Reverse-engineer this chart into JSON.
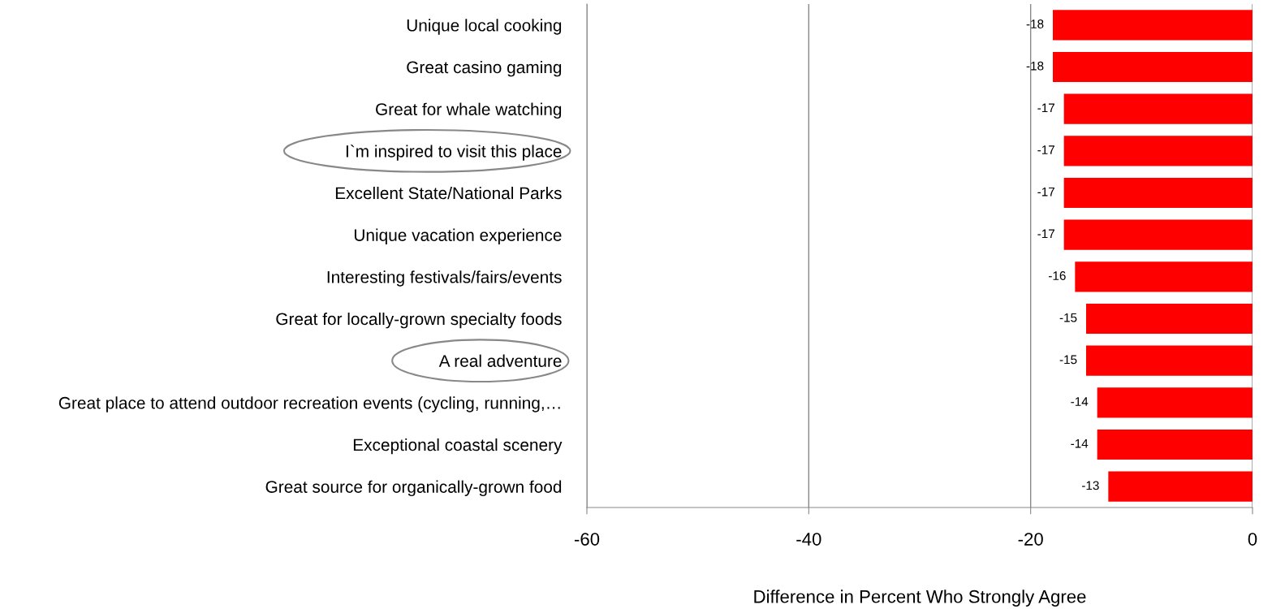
{
  "chart_data": {
    "type": "bar",
    "orientation": "horizontal",
    "xlabel": "Difference in Percent Who Strongly Agree",
    "categories": [
      "Unique local cooking",
      "Great casino gaming",
      "Great for whale watching",
      "I`m inspired to visit this place",
      "Excellent State/National Parks",
      "Unique vacation experience",
      "Interesting festivals/fairs/events",
      "Great for locally-grown specialty foods",
      "A real adventure",
      "Great place to attend outdoor recreation events (cycling, running,…",
      "Exceptional coastal scenery",
      "Great source for organically-grown food"
    ],
    "values": [
      -18,
      -18,
      -17,
      -17,
      -17,
      -17,
      -16,
      -15,
      -15,
      -14,
      -14,
      -13
    ],
    "color": "#ff0000",
    "data_labels": true,
    "xlim": [
      -60,
      0
    ],
    "xticks": [
      -60,
      -40,
      -20,
      0
    ],
    "grid": "x"
  }
}
